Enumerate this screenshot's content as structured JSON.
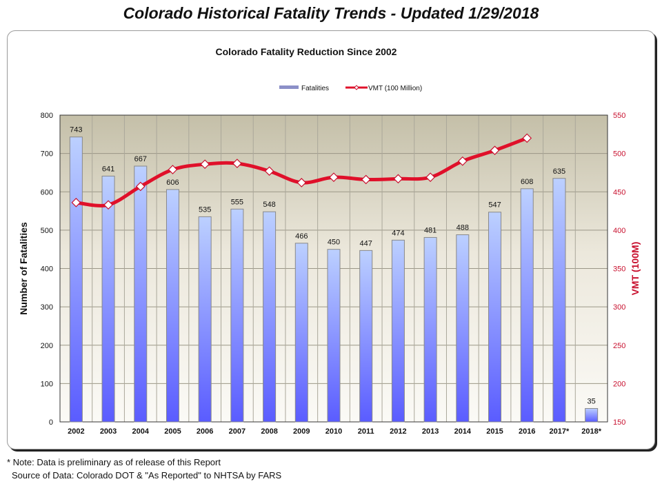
{
  "page_title": "Colorado Historical Fatality Trends - Updated 1/29/2018",
  "notes": [
    "* Note: Data is preliminary as of release of this Report",
    "Source of Data: Colorado DOT & \"As Reported\" to NHTSA by FARS"
  ],
  "chart_data": {
    "type": "bar+line",
    "title": "Colorado Fatality Reduction Since 2002",
    "categories": [
      "2002",
      "2003",
      "2004",
      "2005",
      "2006",
      "2007",
      "2008",
      "2009",
      "2010",
      "2011",
      "2012",
      "2013",
      "2014",
      "2015",
      "2016",
      "2017*",
      "2018*"
    ],
    "series": [
      {
        "name": "Fatalities",
        "type": "bar",
        "axis": "left",
        "values": [
          743,
          641,
          667,
          606,
          535,
          555,
          548,
          466,
          450,
          447,
          474,
          481,
          488,
          547,
          608,
          635,
          35
        ]
      },
      {
        "name": "VMT (100 Million)",
        "type": "line",
        "axis": "right",
        "values": [
          436,
          433,
          457,
          479,
          486,
          487,
          477,
          462,
          469,
          466,
          467,
          469,
          490,
          504,
          520,
          null,
          null
        ]
      }
    ],
    "ylabel": "Number of Fatalities",
    "ylim": [
      0,
      800
    ],
    "yticks": [
      0,
      100,
      200,
      300,
      400,
      500,
      600,
      700,
      800
    ],
    "y2label": "VMT (100M)",
    "y2lim": [
      150,
      550
    ],
    "y2ticks": [
      150,
      200,
      250,
      300,
      350,
      400,
      450,
      500,
      550
    ],
    "legend": "top-center",
    "grid": true,
    "colors": {
      "bar": "#7f8fff",
      "line": "#e0102a",
      "axis2": "#c8102e"
    }
  }
}
